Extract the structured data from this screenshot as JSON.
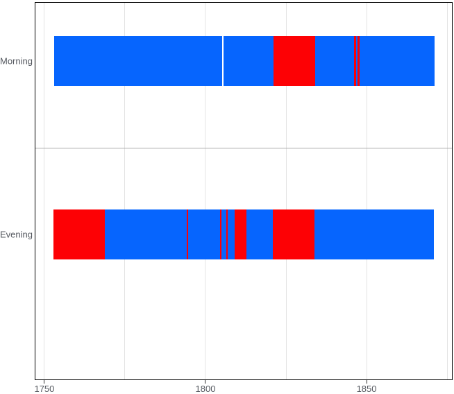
{
  "chart_data": {
    "type": "timeline",
    "title": "",
    "xlabel": "",
    "ylabel": "",
    "categories": [
      "Morning",
      "Evening"
    ],
    "xlim": [
      1747.0,
      1876.6
    ],
    "x_ticks": [
      1750,
      1800,
      1850
    ],
    "x_tick_labels": [
      "1750",
      "1800",
      "1850"
    ],
    "x_gridlines": [
      1750,
      1775,
      1800,
      1825,
      1850,
      1875
    ],
    "grid": "vertical-light-gray",
    "legend": "none",
    "panel_border": true,
    "colors": {
      "blue": "#0665fe",
      "red": "#fd0105",
      "gridline": "#e3e3e3",
      "separator": "#a8a8a8",
      "border": "#000000",
      "tick": "#2b2b2b",
      "text": "#54585f",
      "background": "#ffffff"
    },
    "rows": [
      {
        "label": "Morning",
        "segments": [
          {
            "start": 1753.0,
            "end": 1805.2,
            "color": "blue"
          },
          {
            "start": 1805.55,
            "end": 1821.1,
            "color": "blue"
          },
          {
            "start": 1821.1,
            "end": 1834.0,
            "color": "red"
          },
          {
            "start": 1834.0,
            "end": 1846.15,
            "color": "blue"
          },
          {
            "start": 1846.15,
            "end": 1846.8,
            "color": "red"
          },
          {
            "start": 1846.8,
            "end": 1847.25,
            "color": "blue"
          },
          {
            "start": 1847.25,
            "end": 1847.9,
            "color": "red"
          },
          {
            "start": 1847.9,
            "end": 1871.0,
            "color": "blue"
          }
        ]
      },
      {
        "label": "Evening",
        "segments": [
          {
            "start": 1752.8,
            "end": 1768.85,
            "color": "red"
          },
          {
            "start": 1768.85,
            "end": 1794.1,
            "color": "blue"
          },
          {
            "start": 1794.1,
            "end": 1794.55,
            "color": "red"
          },
          {
            "start": 1794.55,
            "end": 1804.5,
            "color": "blue"
          },
          {
            "start": 1804.5,
            "end": 1804.95,
            "color": "red"
          },
          {
            "start": 1804.95,
            "end": 1806.4,
            "color": "blue"
          },
          {
            "start": 1806.4,
            "end": 1806.85,
            "color": "red"
          },
          {
            "start": 1806.85,
            "end": 1809.1,
            "color": "blue"
          },
          {
            "start": 1809.1,
            "end": 1812.7,
            "color": "red"
          },
          {
            "start": 1812.7,
            "end": 1820.8,
            "color": "blue"
          },
          {
            "start": 1820.8,
            "end": 1833.8,
            "color": "red"
          },
          {
            "start": 1833.8,
            "end": 1871.0,
            "color": "blue"
          }
        ]
      }
    ]
  }
}
